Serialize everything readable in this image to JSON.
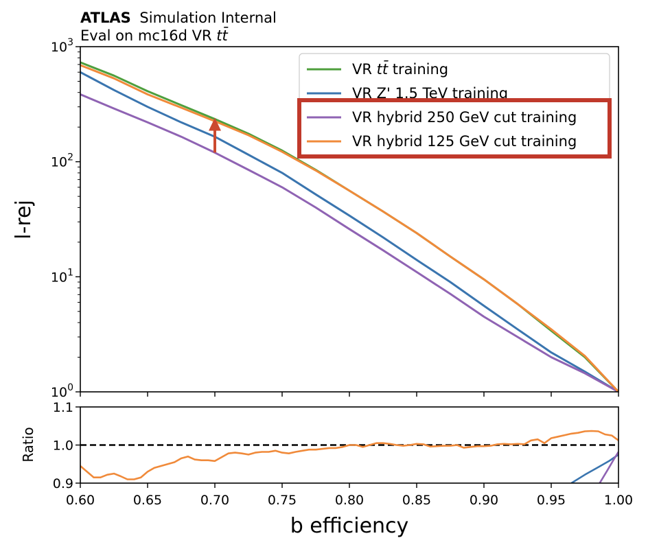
{
  "header": {
    "experiment": "ATLAS",
    "status": "Simulation Internal",
    "subtitle_prefix": "Eval on mc16d VR ",
    "subtitle_sample": "tt̄"
  },
  "chart_data": [
    {
      "panel": "main",
      "type": "line",
      "xlabel": "b efficiency",
      "ylabel": "l-rej",
      "xlim": [
        0.6,
        1.0
      ],
      "ylim": [
        1,
        1000
      ],
      "yscale": "log",
      "xticks": [
        "0.60",
        "0.65",
        "0.70",
        "0.75",
        "0.80",
        "0.85",
        "0.90",
        "0.95",
        "1.00"
      ],
      "yticks": [
        {
          "base": "10",
          "exp": "0"
        },
        {
          "base": "10",
          "exp": "1"
        },
        {
          "base": "10",
          "exp": "2"
        },
        {
          "base": "10",
          "exp": "3"
        }
      ],
      "grid": false,
      "legend_position": "top-right",
      "x": [
        0.6,
        0.625,
        0.65,
        0.675,
        0.7,
        0.725,
        0.75,
        0.775,
        0.8,
        0.825,
        0.85,
        0.875,
        0.9,
        0.925,
        0.95,
        0.975,
        1.0
      ],
      "series": [
        {
          "name": "VR tt̄ training",
          "name_prefix": "VR ",
          "name_sample": "tt̄",
          "name_suffix": " training",
          "color": "#4e9f3d",
          "values": [
            730,
            560,
            410,
            310,
            235,
            175,
            125,
            85,
            56,
            37,
            24,
            15,
            9.5,
            5.8,
            3.4,
            2.0,
            1.0
          ]
        },
        {
          "name": "VR Z' 1.5 TeV training",
          "color": "#3a75af",
          "values": [
            600,
            420,
            300,
            220,
            165,
            115,
            80,
            52,
            34,
            22,
            14,
            9.0,
            5.6,
            3.5,
            2.2,
            1.5,
            1.0
          ]
        },
        {
          "name": "VR hybrid 250 GeV cut training",
          "color": "#8f63b3",
          "values": [
            385,
            290,
            220,
            165,
            120,
            85,
            60,
            40,
            26,
            17,
            11,
            7.1,
            4.5,
            3.0,
            2.0,
            1.45,
            1.0
          ]
        },
        {
          "name": "VR hybrid 125 GeV cut training",
          "color": "#f08a3a",
          "values": [
            690,
            530,
            385,
            295,
            225,
            170,
            122,
            84,
            56,
            37,
            24,
            15,
            9.5,
            5.8,
            3.5,
            2.05,
            1.0
          ]
        }
      ],
      "annotation": {
        "type": "arrow",
        "x": 0.7,
        "from": 120,
        "to": 235,
        "color": "#cc4a2f"
      },
      "highlight_box": {
        "around": [
          "VR hybrid 250 GeV cut training",
          "VR hybrid 125 GeV cut training"
        ],
        "color": "#c0392b"
      }
    },
    {
      "panel": "ratio",
      "type": "line",
      "xlabel": "b efficiency",
      "ylabel": "Ratio",
      "xlim": [
        0.6,
        1.0
      ],
      "ylim": [
        0.9,
        1.1
      ],
      "xticks": [
        "0.60",
        "0.65",
        "0.70",
        "0.75",
        "0.80",
        "0.85",
        "0.90",
        "0.95",
        "1.00"
      ],
      "yticks": [
        "0.9",
        "1.0",
        "1.1"
      ],
      "reference_line": {
        "y": 1.0,
        "style": "dashed",
        "color": "#000000"
      },
      "series": [
        {
          "name": "VR hybrid 125 GeV cut training",
          "color": "#f08a3a",
          "points": [
            [
              0.6,
              0.945
            ],
            [
              0.605,
              0.93
            ],
            [
              0.61,
              0.915
            ],
            [
              0.615,
              0.915
            ],
            [
              0.62,
              0.922
            ],
            [
              0.625,
              0.925
            ],
            [
              0.63,
              0.918
            ],
            [
              0.635,
              0.91
            ],
            [
              0.64,
              0.91
            ],
            [
              0.645,
              0.915
            ],
            [
              0.65,
              0.93
            ],
            [
              0.655,
              0.94
            ],
            [
              0.66,
              0.945
            ],
            [
              0.665,
              0.95
            ],
            [
              0.67,
              0.955
            ],
            [
              0.675,
              0.965
            ],
            [
              0.68,
              0.97
            ],
            [
              0.685,
              0.962
            ],
            [
              0.69,
              0.96
            ],
            [
              0.695,
              0.96
            ],
            [
              0.7,
              0.958
            ],
            [
              0.705,
              0.968
            ],
            [
              0.71,
              0.978
            ],
            [
              0.715,
              0.98
            ],
            [
              0.72,
              0.978
            ],
            [
              0.725,
              0.975
            ],
            [
              0.73,
              0.98
            ],
            [
              0.735,
              0.982
            ],
            [
              0.74,
              0.982
            ],
            [
              0.745,
              0.985
            ],
            [
              0.75,
              0.98
            ],
            [
              0.755,
              0.978
            ],
            [
              0.76,
              0.982
            ],
            [
              0.765,
              0.985
            ],
            [
              0.77,
              0.988
            ],
            [
              0.775,
              0.988
            ],
            [
              0.78,
              0.99
            ],
            [
              0.785,
              0.992
            ],
            [
              0.79,
              0.992
            ],
            [
              0.795,
              0.995
            ],
            [
              0.8,
              1.0
            ],
            [
              0.805,
              1.0
            ],
            [
              0.81,
              0.995
            ],
            [
              0.815,
              1.0
            ],
            [
              0.82,
              1.005
            ],
            [
              0.825,
              1.005
            ],
            [
              0.83,
              1.003
            ],
            [
              0.835,
              1.0
            ],
            [
              0.84,
              0.998
            ],
            [
              0.845,
              1.0
            ],
            [
              0.85,
              1.003
            ],
            [
              0.855,
              1.002
            ],
            [
              0.86,
              0.996
            ],
            [
              0.865,
              0.997
            ],
            [
              0.87,
              0.998
            ],
            [
              0.875,
              0.998
            ],
            [
              0.88,
              1.0
            ],
            [
              0.885,
              0.993
            ],
            [
              0.89,
              0.995
            ],
            [
              0.895,
              0.997
            ],
            [
              0.9,
              0.997
            ],
            [
              0.905,
              0.998
            ],
            [
              0.91,
              1.002
            ],
            [
              0.915,
              1.003
            ],
            [
              0.92,
              1.002
            ],
            [
              0.925,
              1.003
            ],
            [
              0.93,
              1.002
            ],
            [
              0.935,
              1.012
            ],
            [
              0.94,
              1.015
            ],
            [
              0.945,
              1.005
            ],
            [
              0.95,
              1.018
            ],
            [
              0.955,
              1.022
            ],
            [
              0.96,
              1.026
            ],
            [
              0.965,
              1.03
            ],
            [
              0.97,
              1.032
            ],
            [
              0.975,
              1.036
            ],
            [
              0.98,
              1.037
            ],
            [
              0.985,
              1.036
            ],
            [
              0.99,
              1.028
            ],
            [
              0.995,
              1.025
            ],
            [
              1.0,
              1.012
            ]
          ]
        },
        {
          "name": "VR Z' 1.5 TeV training",
          "color": "#3a75af",
          "points": [
            [
              0.965,
              0.9
            ],
            [
              0.975,
              0.922
            ],
            [
              0.985,
              0.942
            ],
            [
              0.993,
              0.958
            ],
            [
              1.0,
              0.975
            ]
          ]
        },
        {
          "name": "VR hybrid 250 GeV cut training",
          "color": "#8f63b3",
          "points": [
            [
              0.986,
              0.9
            ],
            [
              0.992,
              0.935
            ],
            [
              0.997,
              0.965
            ],
            [
              1.0,
              0.982
            ]
          ]
        }
      ]
    }
  ]
}
